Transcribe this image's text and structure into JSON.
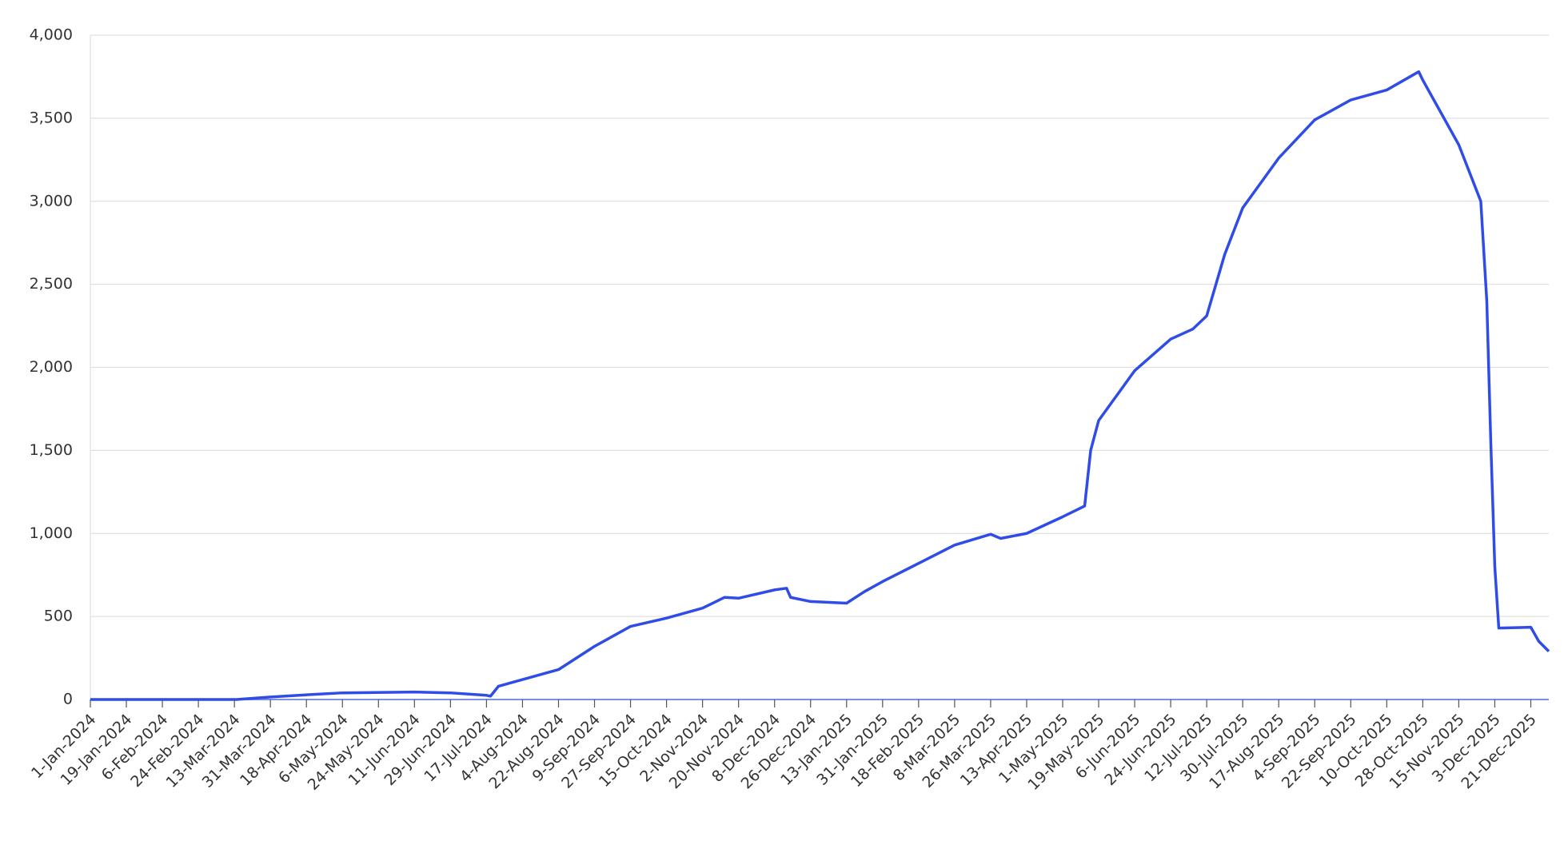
{
  "chart_data": {
    "type": "line",
    "x": [
      "2024-01-01",
      "2024-03-14",
      "2024-03-31",
      "2024-04-18",
      "2024-05-06",
      "2024-06-11",
      "2024-06-29",
      "2024-07-17",
      "2024-07-19",
      "2024-07-23",
      "2024-08-04",
      "2024-08-22",
      "2024-09-09",
      "2024-09-27",
      "2024-10-15",
      "2024-11-02",
      "2024-11-13",
      "2024-11-20",
      "2024-12-08",
      "2024-12-14",
      "2024-12-16",
      "2024-12-26",
      "2025-01-13",
      "2025-01-22",
      "2025-01-31",
      "2025-02-18",
      "2025-03-08",
      "2025-03-26",
      "2025-03-31",
      "2025-04-13",
      "2025-05-01",
      "2025-05-12",
      "2025-05-15",
      "2025-05-19",
      "2025-06-06",
      "2025-06-24",
      "2025-07-05",
      "2025-07-12",
      "2025-07-21",
      "2025-07-30",
      "2025-08-17",
      "2025-09-04",
      "2025-09-22",
      "2025-10-10",
      "2025-10-26",
      "2025-10-28",
      "2025-11-15",
      "2025-11-26",
      "2025-11-29",
      "2025-12-01",
      "2025-12-03",
      "2025-12-05",
      "2025-12-21",
      "2025-12-25",
      "2025-12-30"
    ],
    "series": [
      {
        "color": "#2f4de6",
        "values": [
          0,
          0,
          15,
          28,
          40,
          45,
          40,
          25,
          20,
          80,
          120,
          180,
          320,
          440,
          490,
          550,
          615,
          610,
          660,
          670,
          615,
          590,
          580,
          650,
          710,
          820,
          930,
          995,
          970,
          1000,
          1100,
          1165,
          1500,
          1680,
          1980,
          2170,
          2230,
          2310,
          2680,
          2960,
          3260,
          3490,
          3610,
          3670,
          3780,
          3730,
          3340,
          3000,
          2400,
          1550,
          800,
          430,
          435,
          350,
          290
        ]
      }
    ],
    "xlim": [
      "2024-01-01",
      "2025-12-30"
    ],
    "xticks": [
      {
        "value": "2024-01-01",
        "label": "1-Jan-2024"
      },
      {
        "value": "2024-01-19",
        "label": "19-Jan-2024"
      },
      {
        "value": "2024-02-06",
        "label": "6-Feb-2024"
      },
      {
        "value": "2024-02-24",
        "label": "24-Feb-2024"
      },
      {
        "value": "2024-03-13",
        "label": "13-Mar-2024"
      },
      {
        "value": "2024-03-31",
        "label": "31-Mar-2024"
      },
      {
        "value": "2024-04-18",
        "label": "18-Apr-2024"
      },
      {
        "value": "2024-05-06",
        "label": "6-May-2024"
      },
      {
        "value": "2024-05-24",
        "label": "24-May-2024"
      },
      {
        "value": "2024-06-11",
        "label": "11-Jun-2024"
      },
      {
        "value": "2024-06-29",
        "label": "29-Jun-2024"
      },
      {
        "value": "2024-07-17",
        "label": "17-Jul-2024"
      },
      {
        "value": "2024-08-04",
        "label": "4-Aug-2024"
      },
      {
        "value": "2024-08-22",
        "label": "22-Aug-2024"
      },
      {
        "value": "2024-09-09",
        "label": "9-Sep-2024"
      },
      {
        "value": "2024-09-27",
        "label": "27-Sep-2024"
      },
      {
        "value": "2024-10-15",
        "label": "15-Oct-2024"
      },
      {
        "value": "2024-11-02",
        "label": "2-Nov-2024"
      },
      {
        "value": "2024-11-20",
        "label": "20-Nov-2024"
      },
      {
        "value": "2024-12-08",
        "label": "8-Dec-2024"
      },
      {
        "value": "2024-12-26",
        "label": "26-Dec-2024"
      },
      {
        "value": "2025-01-13",
        "label": "13-Jan-2025"
      },
      {
        "value": "2025-01-31",
        "label": "31-Jan-2025"
      },
      {
        "value": "2025-02-18",
        "label": "18-Feb-2025"
      },
      {
        "value": "2025-03-08",
        "label": "8-Mar-2025"
      },
      {
        "value": "2025-03-26",
        "label": "26-Mar-2025"
      },
      {
        "value": "2025-04-13",
        "label": "13-Apr-2025"
      },
      {
        "value": "2025-05-01",
        "label": "1-May-2025"
      },
      {
        "value": "2025-05-19",
        "label": "19-May-2025"
      },
      {
        "value": "2025-06-06",
        "label": "6-Jun-2025"
      },
      {
        "value": "2025-06-24",
        "label": "24-Jun-2025"
      },
      {
        "value": "2025-07-12",
        "label": "12-Jul-2025"
      },
      {
        "value": "2025-07-30",
        "label": "30-Jul-2025"
      },
      {
        "value": "2025-08-17",
        "label": "17-Aug-2025"
      },
      {
        "value": "2025-09-04",
        "label": "4-Sep-2025"
      },
      {
        "value": "2025-09-22",
        "label": "22-Sep-2025"
      },
      {
        "value": "2025-10-10",
        "label": "10-Oct-2025"
      },
      {
        "value": "2025-10-28",
        "label": "28-Oct-2025"
      },
      {
        "value": "2025-11-15",
        "label": "15-Nov-2025"
      },
      {
        "value": "2025-12-03",
        "label": "3-Dec-2025"
      },
      {
        "value": "2025-12-21",
        "label": "21-Dec-2025"
      }
    ],
    "ylim": [
      0,
      4000
    ],
    "yticks": [
      0,
      {
        "value": 500,
        "label": "500"
      },
      {
        "value": 1000,
        "label": "1,000"
      },
      {
        "value": 1500,
        "label": "1,500"
      },
      {
        "value": 2000,
        "label": "2,000"
      },
      {
        "value": 2500,
        "label": "2,500"
      },
      {
        "value": 3000,
        "label": "3,000"
      },
      {
        "value": 3500,
        "label": "3,500"
      },
      {
        "value": 4000,
        "label": "4,000"
      }
    ],
    "grid": true
  }
}
